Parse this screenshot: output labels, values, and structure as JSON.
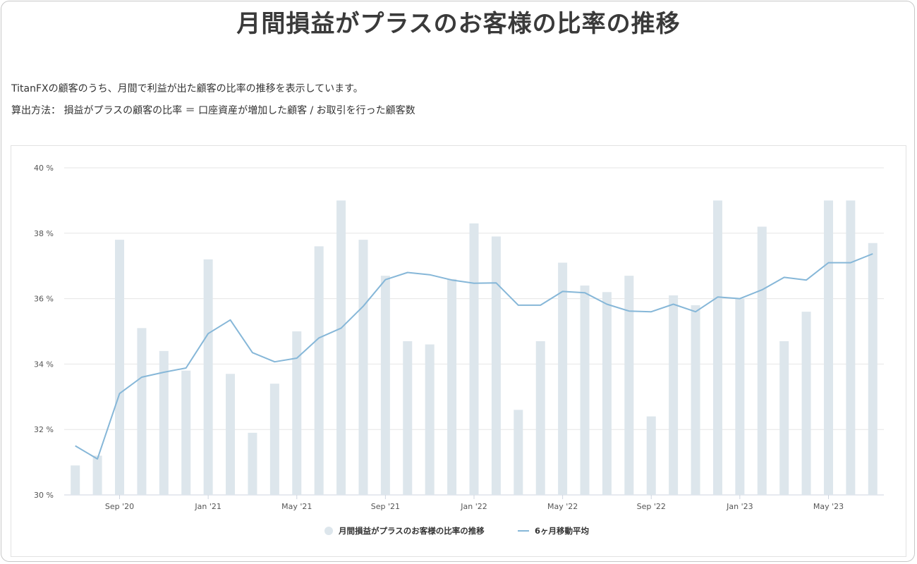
{
  "title": "月間損益がプラスのお客様の比率の推移",
  "description": {
    "line1": "TitanFXの顧客のうち、月間で利益が出た顧客の比率の推移を表示しています。",
    "line2": "算出方法： 損益がプラスの顧客の比率 ＝ 口座資産が増加した顧客 / お取引を行った顧客数"
  },
  "chart_data": {
    "type": "bar",
    "title": "",
    "xlabel": "",
    "ylabel": "",
    "ylim": [
      30,
      40
    ],
    "y_ticks": [
      30,
      32,
      34,
      36,
      38,
      40
    ],
    "y_tick_labels": [
      "30 %",
      "32 %",
      "34 %",
      "36 %",
      "38 %",
      "40 %"
    ],
    "grid": true,
    "legend_position": "bottom-center",
    "categories": [
      "Jul '20",
      "Aug '20",
      "Sep '20",
      "Oct '20",
      "Nov '20",
      "Dec '20",
      "Jan '21",
      "Feb '21",
      "Mar '21",
      "Apr '21",
      "May '21",
      "Jun '21",
      "Jul '21",
      "Aug '21",
      "Sep '21",
      "Oct '21",
      "Nov '21",
      "Dec '21",
      "Jan '22",
      "Feb '22",
      "Mar '22",
      "Apr '22",
      "May '22",
      "Jun '22",
      "Jul '22",
      "Aug '22",
      "Sep '22",
      "Oct '22",
      "Nov '22",
      "Dec '22",
      "Jan '23",
      "Feb '23",
      "Mar '23",
      "Apr '23",
      "May '23",
      "Jun '23",
      "Jul '23"
    ],
    "x_tick_labels": [
      {
        "index": 2,
        "label": "Sep '20"
      },
      {
        "index": 6,
        "label": "Jan '21"
      },
      {
        "index": 10,
        "label": "May '21"
      },
      {
        "index": 14,
        "label": "Sep '21"
      },
      {
        "index": 18,
        "label": "Jan '22"
      },
      {
        "index": 22,
        "label": "May '22"
      },
      {
        "index": 26,
        "label": "Sep '22"
      },
      {
        "index": 30,
        "label": "Jan '23"
      },
      {
        "index": 34,
        "label": "May '23"
      }
    ],
    "series": [
      {
        "name": "月間損益がプラスのお客様の比率の推移",
        "type": "bar",
        "color": "#dde6ec",
        "values": [
          30.9,
          31.2,
          37.8,
          35.1,
          34.4,
          33.8,
          37.2,
          33.7,
          31.9,
          33.4,
          35.0,
          37.6,
          39.0,
          37.8,
          36.7,
          34.7,
          34.6,
          36.6,
          38.3,
          37.9,
          32.6,
          34.7,
          37.1,
          36.4,
          36.2,
          36.7,
          32.4,
          36.1,
          35.8,
          39.0,
          36.0,
          38.2,
          34.7,
          35.6,
          39.0,
          39.0,
          37.7
        ]
      },
      {
        "name": "6ヶ月移動平均",
        "type": "line",
        "color": "#86b7d8",
        "values": [
          31.5,
          31.1,
          33.1,
          33.6,
          33.75,
          33.88,
          34.93,
          35.35,
          34.35,
          34.07,
          34.18,
          34.8,
          35.1,
          35.77,
          36.58,
          36.8,
          36.73,
          36.57,
          36.47,
          36.48,
          35.8,
          35.8,
          36.22,
          36.18,
          35.83,
          35.62,
          35.6,
          35.83,
          35.6,
          36.05,
          36.0,
          36.27,
          36.65,
          36.57,
          37.1,
          37.1,
          37.37
        ]
      }
    ]
  }
}
